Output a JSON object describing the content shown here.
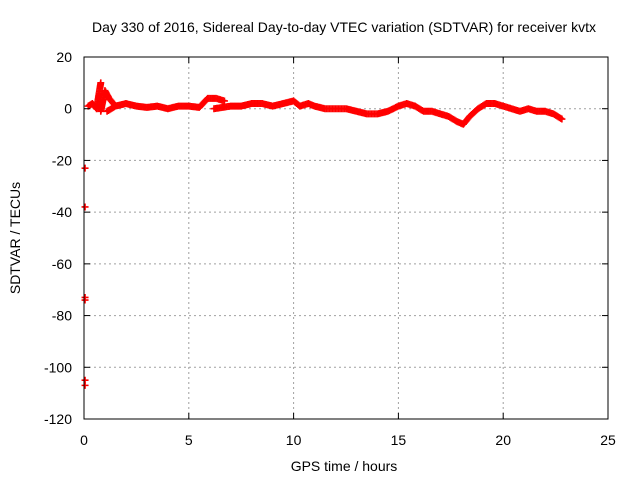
{
  "chart_data": {
    "type": "scatter",
    "title": "Day 330 of 2016, Sidereal Day-to-day VTEC variation (SDTVAR) for receiver kvtx",
    "xlabel": "GPS time / hours",
    "ylabel": "SDTVAR / TECUs",
    "xlim": [
      0,
      25
    ],
    "ylim": [
      -120,
      20
    ],
    "xticks": [
      0,
      5,
      10,
      15,
      20,
      25
    ],
    "yticks": [
      -120,
      -100,
      -80,
      -60,
      -40,
      -20,
      0,
      20
    ],
    "xtick_labels": [
      "0",
      "5",
      "10",
      "15",
      "20",
      "25"
    ],
    "ytick_labels": [
      "-120",
      "-100",
      "-80",
      "-60",
      "-40",
      "-20",
      "0",
      "20"
    ],
    "grid": true,
    "series": [
      {
        "name": "SDTVAR",
        "color": "#ff0000",
        "marker": "plus",
        "x": [
          0.05,
          0.05,
          0.05,
          0.05,
          0.05,
          0.05,
          0.2,
          0.4,
          0.6,
          0.8,
          0.8,
          1.0,
          1.2,
          1.4,
          1.1,
          1.5,
          2.0,
          2.5,
          3.0,
          3.5,
          4.0,
          4.5,
          5.0,
          5.5,
          5.9,
          6.3,
          6.7,
          6.2,
          7.0,
          7.5,
          8.0,
          8.5,
          9.0,
          9.5,
          10.0,
          10.3,
          10.7,
          11.0,
          11.5,
          12.0,
          12.5,
          13.0,
          13.5,
          14.0,
          14.5,
          15.0,
          15.4,
          15.8,
          16.2,
          16.6,
          17.0,
          17.4,
          17.8,
          18.1,
          18.4,
          18.8,
          19.2,
          19.6,
          20.0,
          20.4,
          20.8,
          21.2,
          21.6,
          22.0,
          22.4,
          22.8
        ],
        "y": [
          -23,
          -38,
          -73,
          -74,
          -105,
          -107,
          1,
          2,
          0,
          10,
          -1,
          7,
          4,
          2,
          -1,
          1,
          2,
          1,
          0.5,
          1,
          0,
          1,
          1,
          0.5,
          4,
          4,
          3,
          0,
          1,
          1,
          2,
          2,
          1,
          2,
          3,
          1,
          2,
          1,
          0,
          0,
          0,
          -1,
          -2,
          -2,
          -1,
          1,
          2,
          1,
          -1,
          -1,
          -2,
          -3,
          -5,
          -6,
          -3,
          0,
          2,
          2,
          1,
          0,
          -1,
          0,
          -1,
          -1,
          -2,
          -4
        ]
      }
    ]
  }
}
